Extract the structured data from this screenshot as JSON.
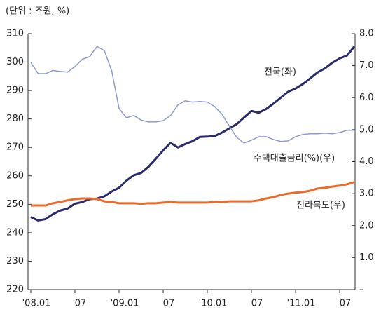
{
  "chart_data": {
    "type": "line",
    "subtitle": "(단위 : 조원, %)",
    "categories": [
      "'08.01",
      null,
      null,
      null,
      null,
      null,
      "07",
      null,
      null,
      null,
      null,
      null,
      "'09.01",
      null,
      null,
      null,
      null,
      null,
      "07",
      null,
      null,
      null,
      null,
      null,
      "'10.01",
      null,
      null,
      null,
      null,
      null,
      "07",
      null,
      null,
      null,
      null,
      null,
      "'11.01",
      null,
      null,
      null,
      null,
      null,
      "07",
      null,
      null
    ],
    "ylim": [
      220,
      310
    ],
    "yticks": [
      220,
      230,
      240,
      250,
      260,
      270,
      280,
      290,
      300,
      310
    ],
    "y2lim": [
      0,
      8
    ],
    "y2ticks": [
      {
        "value": 0,
        "label": "–"
      },
      {
        "value": 1,
        "label": "1.0"
      },
      {
        "value": 2,
        "label": "2.0"
      },
      {
        "value": 3,
        "label": "3.0"
      },
      {
        "value": 4,
        "label": "4.0"
      },
      {
        "value": 5,
        "label": "5.0"
      },
      {
        "value": 6,
        "label": "6.0"
      },
      {
        "value": 7,
        "label": "7.0"
      },
      {
        "value": 8,
        "label": "8.0"
      }
    ],
    "series": [
      {
        "name": "전국(좌)",
        "color": "#2b2d6b",
        "values": [
          245.5,
          244.3,
          244.8,
          246.5,
          247.8,
          248.5,
          250.2,
          250.8,
          251.8,
          252.0,
          252.8,
          254.5,
          255.8,
          258.3,
          260.2,
          261.0,
          263.2,
          266.0,
          269.0,
          271.6,
          270.0,
          271.2,
          272.2,
          273.7,
          273.8,
          274.0,
          275.2,
          276.7,
          278.2,
          280.5,
          282.8,
          282.2,
          283.5,
          285.4,
          287.5,
          289.6,
          290.7,
          292.3,
          294.3,
          296.4,
          297.8,
          299.8,
          301.3,
          302.3,
          305.5
        ]
      },
      {
        "name": "주택대출금리(%)(우)",
        "color": "#8e9ad6",
        "axis": "y2",
        "values": [
          7.1,
          6.75,
          6.75,
          6.85,
          6.82,
          6.8,
          6.97,
          7.2,
          7.28,
          7.6,
          7.47,
          6.84,
          5.66,
          5.37,
          5.44,
          5.3,
          5.24,
          5.24,
          5.28,
          5.44,
          5.77,
          5.9,
          5.86,
          5.88,
          5.86,
          5.72,
          5.48,
          5.11,
          4.76,
          4.58,
          4.67,
          4.78,
          4.78,
          4.69,
          4.63,
          4.65,
          4.78,
          4.85,
          4.87,
          4.87,
          4.89,
          4.87,
          4.91,
          4.98,
          4.98
        ]
      },
      {
        "name": "전라북도(우)",
        "color": "#ee6a2a",
        "axis": "y2",
        "values": [
          2.63,
          2.63,
          2.63,
          2.7,
          2.74,
          2.79,
          2.83,
          2.85,
          2.85,
          2.83,
          2.76,
          2.74,
          2.7,
          2.7,
          2.7,
          2.68,
          2.7,
          2.7,
          2.72,
          2.74,
          2.72,
          2.72,
          2.72,
          2.72,
          2.72,
          2.74,
          2.74,
          2.76,
          2.76,
          2.76,
          2.76,
          2.79,
          2.85,
          2.89,
          2.96,
          3.0,
          3.03,
          3.05,
          3.09,
          3.16,
          3.18,
          3.22,
          3.25,
          3.29,
          3.36
        ]
      }
    ]
  }
}
